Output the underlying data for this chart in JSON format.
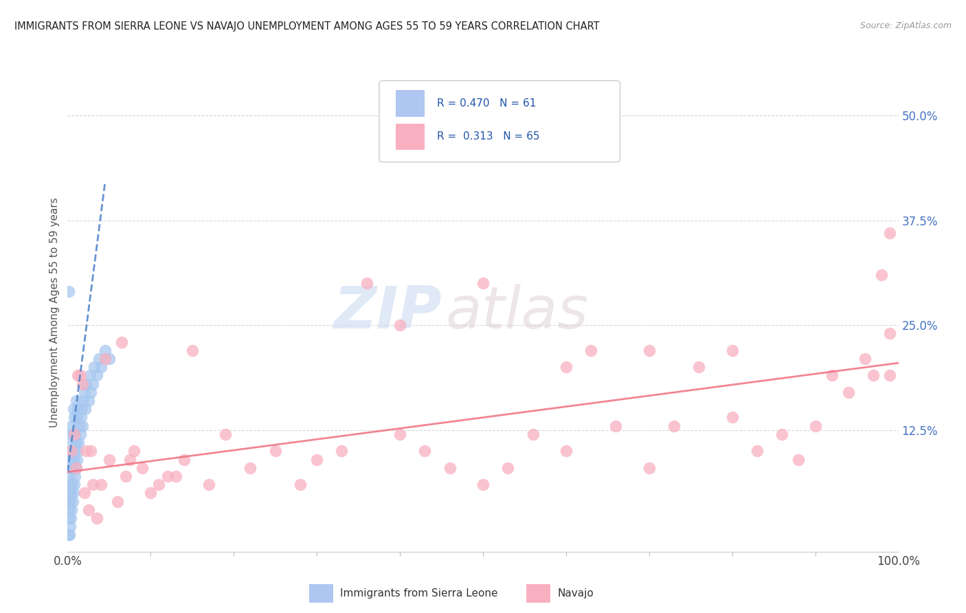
{
  "title": "IMMIGRANTS FROM SIERRA LEONE VS NAVAJO UNEMPLOYMENT AMONG AGES 55 TO 59 YEARS CORRELATION CHART",
  "source": "Source: ZipAtlas.com",
  "ylabel": "Unemployment Among Ages 55 to 59 years",
  "xlim": [
    0,
    1.0
  ],
  "ylim": [
    -0.02,
    0.55
  ],
  "xtick_labels": [
    "0.0%",
    "100.0%"
  ],
  "xtick_positions": [
    0.0,
    1.0
  ],
  "ytick_labels": [
    "12.5%",
    "25.0%",
    "37.5%",
    "50.0%"
  ],
  "ytick_positions": [
    0.125,
    0.25,
    0.375,
    0.5
  ],
  "blue_scatter_x": [
    0.001,
    0.001,
    0.001,
    0.002,
    0.002,
    0.002,
    0.002,
    0.002,
    0.003,
    0.003,
    0.003,
    0.003,
    0.003,
    0.004,
    0.004,
    0.004,
    0.004,
    0.005,
    0.005,
    0.005,
    0.005,
    0.006,
    0.006,
    0.006,
    0.007,
    0.007,
    0.007,
    0.007,
    0.008,
    0.008,
    0.008,
    0.009,
    0.009,
    0.01,
    0.01,
    0.01,
    0.011,
    0.011,
    0.012,
    0.012,
    0.013,
    0.014,
    0.015,
    0.016,
    0.017,
    0.018,
    0.019,
    0.02,
    0.021,
    0.022,
    0.025,
    0.027,
    0.028,
    0.03,
    0.032,
    0.035,
    0.038,
    0.04,
    0.045,
    0.05,
    0.001
  ],
  "blue_scatter_y": [
    0.0,
    0.02,
    0.04,
    0.0,
    0.03,
    0.05,
    0.07,
    0.09,
    0.01,
    0.04,
    0.06,
    0.08,
    0.1,
    0.02,
    0.05,
    0.08,
    0.12,
    0.03,
    0.06,
    0.09,
    0.13,
    0.04,
    0.08,
    0.11,
    0.05,
    0.09,
    0.12,
    0.15,
    0.06,
    0.1,
    0.14,
    0.07,
    0.12,
    0.08,
    0.11,
    0.16,
    0.09,
    0.14,
    0.1,
    0.15,
    0.11,
    0.13,
    0.12,
    0.14,
    0.15,
    0.13,
    0.16,
    0.17,
    0.15,
    0.18,
    0.16,
    0.19,
    0.17,
    0.18,
    0.2,
    0.19,
    0.21,
    0.2,
    0.22,
    0.21,
    0.29
  ],
  "pink_scatter_x": [
    0.005,
    0.008,
    0.01,
    0.012,
    0.015,
    0.018,
    0.02,
    0.022,
    0.025,
    0.028,
    0.03,
    0.035,
    0.04,
    0.045,
    0.05,
    0.06,
    0.065,
    0.07,
    0.075,
    0.08,
    0.09,
    0.1,
    0.11,
    0.12,
    0.13,
    0.14,
    0.15,
    0.17,
    0.19,
    0.22,
    0.25,
    0.28,
    0.3,
    0.33,
    0.36,
    0.4,
    0.43,
    0.46,
    0.5,
    0.53,
    0.56,
    0.6,
    0.63,
    0.66,
    0.7,
    0.73,
    0.76,
    0.8,
    0.83,
    0.86,
    0.88,
    0.9,
    0.92,
    0.94,
    0.96,
    0.97,
    0.98,
    0.99,
    0.99,
    0.99,
    0.5,
    0.4,
    0.6,
    0.7,
    0.8
  ],
  "pink_scatter_y": [
    0.1,
    0.12,
    0.08,
    0.19,
    0.19,
    0.18,
    0.05,
    0.1,
    0.03,
    0.1,
    0.06,
    0.02,
    0.06,
    0.21,
    0.09,
    0.04,
    0.23,
    0.07,
    0.09,
    0.1,
    0.08,
    0.05,
    0.06,
    0.07,
    0.07,
    0.09,
    0.22,
    0.06,
    0.12,
    0.08,
    0.1,
    0.06,
    0.09,
    0.1,
    0.3,
    0.12,
    0.1,
    0.08,
    0.06,
    0.08,
    0.12,
    0.1,
    0.22,
    0.13,
    0.08,
    0.13,
    0.2,
    0.14,
    0.1,
    0.12,
    0.09,
    0.13,
    0.19,
    0.17,
    0.21,
    0.19,
    0.31,
    0.24,
    0.19,
    0.36,
    0.3,
    0.25,
    0.2,
    0.22,
    0.22
  ],
  "blue_line_x": [
    0.0,
    0.045
  ],
  "blue_line_y": [
    0.075,
    0.42
  ],
  "pink_line_x": [
    0.0,
    1.0
  ],
  "pink_line_y": [
    0.075,
    0.205
  ],
  "blue_scatter_color": "#a8c8f0",
  "pink_scatter_color": "#f8b0c0",
  "blue_line_color": "#5588cc",
  "pink_line_color": "#f07080",
  "watermark_zip": "ZIP",
  "watermark_atlas": "atlas",
  "background_color": "#ffffff",
  "grid_color": "#d8d8d8",
  "legend_box_color": "#aec6f0",
  "legend_pink_color": "#f8b0c0",
  "R_blue": "0.470",
  "N_blue": "61",
  "R_pink": "0.313",
  "N_pink": "65",
  "label_blue": "Immigrants from Sierra Leone",
  "label_pink": "Navajo"
}
